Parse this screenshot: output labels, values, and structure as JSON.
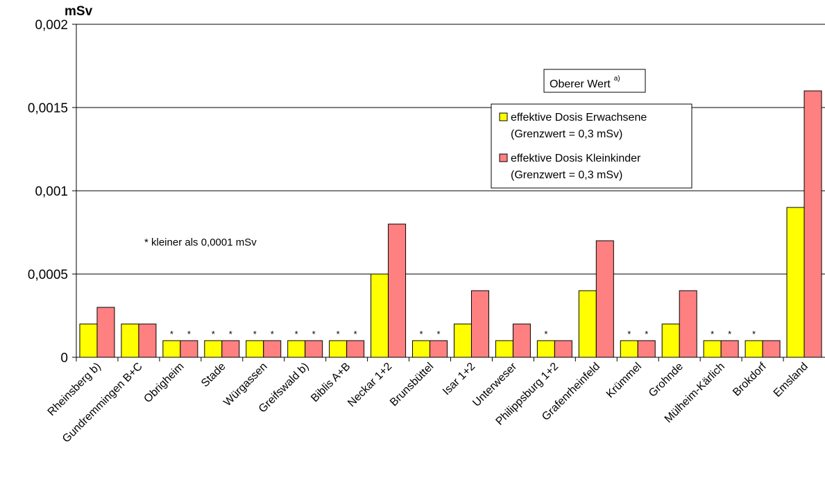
{
  "chart_data": {
    "type": "bar",
    "ylabel": "mSv",
    "ylim": [
      0,
      0.002
    ],
    "yticks": [
      "0",
      "0,0005",
      "0,001",
      "0,0015",
      "0,002"
    ],
    "grid": true,
    "categories": [
      "Rheinsberg b)",
      "Gundremmingen B+C",
      "Obrigheim",
      "Stade",
      "Würgassen",
      "Greifswald b)",
      "Biblis A+B",
      "Neckar 1+2",
      "Brunsbüttel",
      "Isar 1+2",
      "Unterweser",
      "Philippsburg 1+2",
      "Grafenrheinfeld",
      "Krümmel",
      "Grohnde",
      "Mülheim-Kärlich",
      "Brokdorf",
      "Emsland"
    ],
    "series": [
      {
        "name": "effektive Dosis Erwachsene",
        "name_line2": "(Grenzwert = 0,3 mSv)",
        "color": "#ffff00",
        "values": [
          0.0002,
          0.0002,
          0.0001,
          0.0001,
          0.0001,
          0.0001,
          0.0001,
          0.0005,
          0.0001,
          0.0002,
          0.0001,
          0.0001,
          0.0004,
          0.0001,
          0.0002,
          0.0001,
          0.0001,
          0.0009
        ],
        "star": [
          false,
          false,
          true,
          true,
          true,
          true,
          true,
          false,
          true,
          false,
          false,
          true,
          false,
          true,
          false,
          true,
          true,
          false
        ]
      },
      {
        "name": "effektive Dosis Kleinkinder",
        "name_line2": "(Grenzwert = 0,3 mSv)",
        "color": "#ff8080",
        "values": [
          0.0003,
          0.0002,
          0.0001,
          0.0001,
          0.0001,
          0.0001,
          0.0001,
          0.0008,
          0.0001,
          0.0004,
          0.0002,
          0.0001,
          0.0007,
          0.0001,
          0.0004,
          0.0001,
          0.0001,
          0.0016
        ],
        "star": [
          false,
          false,
          true,
          true,
          true,
          true,
          true,
          false,
          true,
          false,
          false,
          false,
          false,
          true,
          false,
          true,
          false,
          false
        ]
      }
    ],
    "star_symbol": "*",
    "annotations": {
      "box_label": "Oberer Wert",
      "box_sup": "a)",
      "note": "*  kleiner als 0,0001 mSv"
    },
    "legend_position": "top-right"
  }
}
